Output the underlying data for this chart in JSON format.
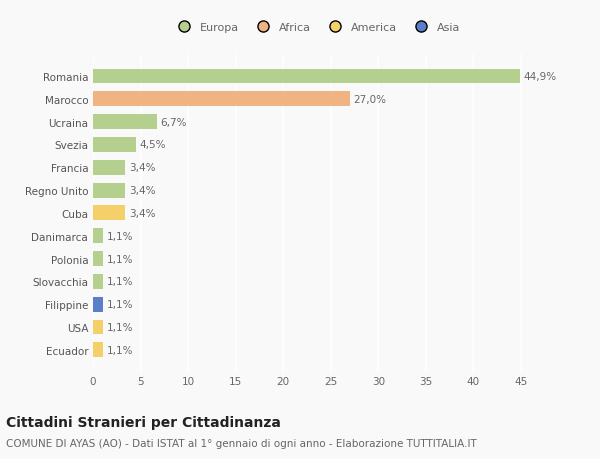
{
  "countries": [
    "Romania",
    "Marocco",
    "Ucraina",
    "Svezia",
    "Francia",
    "Regno Unito",
    "Cuba",
    "Danimarca",
    "Polonia",
    "Slovacchia",
    "Filippine",
    "USA",
    "Ecuador"
  ],
  "values": [
    44.9,
    27.0,
    6.7,
    4.5,
    3.4,
    3.4,
    3.4,
    1.1,
    1.1,
    1.1,
    1.1,
    1.1,
    1.1
  ],
  "labels": [
    "44,9%",
    "27,0%",
    "6,7%",
    "4,5%",
    "3,4%",
    "3,4%",
    "3,4%",
    "1,1%",
    "1,1%",
    "1,1%",
    "1,1%",
    "1,1%",
    "1,1%"
  ],
  "colors": [
    "#b5d08e",
    "#f0b482",
    "#b5d08e",
    "#b5d08e",
    "#b5d08e",
    "#b5d08e",
    "#f5d06a",
    "#b5d08e",
    "#b5d08e",
    "#b5d08e",
    "#5b7ec9",
    "#f5d06a",
    "#f5d06a"
  ],
  "legend": [
    {
      "label": "Europa",
      "color": "#b5d08e"
    },
    {
      "label": "Africa",
      "color": "#f0b482"
    },
    {
      "label": "America",
      "color": "#f5d06a"
    },
    {
      "label": "Asia",
      "color": "#5b7ec9"
    }
  ],
  "xlim": [
    0,
    47
  ],
  "xticks": [
    0,
    5,
    10,
    15,
    20,
    25,
    30,
    35,
    40,
    45
  ],
  "title": "Cittadini Stranieri per Cittadinanza",
  "subtitle": "COMUNE DI AYAS (AO) - Dati ISTAT al 1° gennaio di ogni anno - Elaborazione TUTTITALIA.IT",
  "background_color": "#f9f9f9",
  "grid_color": "#ffffff",
  "bar_height": 0.65,
  "title_fontsize": 10,
  "subtitle_fontsize": 7.5,
  "label_fontsize": 7.5,
  "tick_fontsize": 7.5,
  "legend_fontsize": 8
}
